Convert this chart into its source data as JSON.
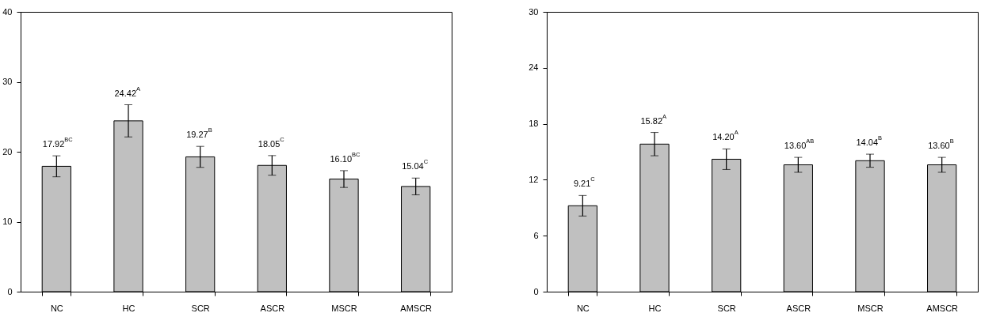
{
  "chart_data": [
    {
      "type": "bar",
      "categories": [
        "NC",
        "HC",
        "SCR",
        "ASCR",
        "MSCR",
        "AMSCR"
      ],
      "values": [
        17.92,
        24.42,
        19.27,
        18.05,
        16.1,
        15.04
      ],
      "errors": [
        1.5,
        2.3,
        1.5,
        1.4,
        1.2,
        1.2
      ],
      "value_labels": [
        "17.92$^{BC}$",
        "24.42$^{A}$",
        "19.27$^{B}$",
        "18.05$^{C}$",
        "16.10$^{BC}$",
        "15.04$^{C}$"
      ],
      "color": "#c0c0c0",
      "ylim": [
        0,
        40
      ],
      "yticks": [
        0,
        10,
        20,
        30,
        40
      ]
    },
    {
      "type": "bar",
      "categories": [
        "NC",
        "HC",
        "SCR",
        "ASCR",
        "MSCR",
        "AMSCR"
      ],
      "values": [
        9.21,
        15.82,
        14.2,
        13.6,
        14.04,
        13.6
      ],
      "errors": [
        1.1,
        1.25,
        1.1,
        0.8,
        0.7,
        0.8
      ],
      "value_labels": [
        "9.21$^{C}$",
        "15.82$^{A}$",
        "14.20$^{A}$",
        "13.60$^{AB}$",
        "14.04$^{B}$",
        "13.60$^{B}$"
      ],
      "color": "#c0c0c0",
      "ylim": [
        0,
        30
      ],
      "yticks": [
        0,
        6,
        12,
        18,
        24,
        30
      ]
    }
  ]
}
